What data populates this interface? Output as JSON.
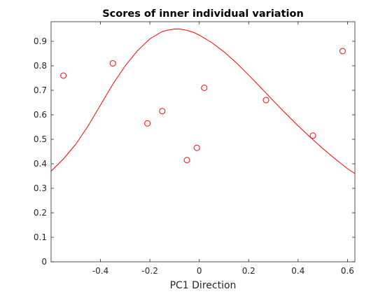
{
  "chart_data": {
    "type": "scatter",
    "title": "Scores of inner individual variation",
    "xlabel": "PC1 Direction",
    "ylabel": "",
    "xlim": [
      -0.6,
      0.63
    ],
    "ylim": [
      0,
      0.98
    ],
    "xticks": [
      -0.4,
      -0.2,
      0,
      0.2,
      0.4,
      0.6
    ],
    "xtick_labels": [
      "-0.4",
      "-0.2",
      "0",
      "0.2",
      "0.4",
      "0.6"
    ],
    "yticks": [
      0,
      0.1,
      0.2,
      0.3,
      0.4,
      0.5,
      0.6,
      0.7,
      0.8,
      0.9
    ],
    "ytick_labels": [
      "0",
      "0.1",
      "0.2",
      "0.3",
      "0.4",
      "0.5",
      "0.6",
      "0.7",
      "0.8",
      "0.9"
    ],
    "grid": false,
    "color": "#ff0000",
    "series": [
      {
        "kind": "points",
        "marker": "circle-open",
        "x": [
          -0.55,
          -0.35,
          -0.21,
          -0.15,
          -0.05,
          -0.01,
          0.02,
          0.27,
          0.46,
          0.58
        ],
        "y": [
          0.76,
          0.81,
          0.565,
          0.615,
          0.415,
          0.465,
          0.71,
          0.66,
          0.515,
          0.86
        ]
      },
      {
        "kind": "curve",
        "x": [
          -0.6,
          -0.55,
          -0.5,
          -0.45,
          -0.4,
          -0.35,
          -0.3,
          -0.25,
          -0.2,
          -0.15,
          -0.12,
          -0.1,
          -0.08,
          -0.05,
          -0.02,
          0,
          0.05,
          0.1,
          0.15,
          0.2,
          0.25,
          0.3,
          0.35,
          0.4,
          0.45,
          0.5,
          0.55,
          0.6,
          0.63
        ],
        "y": [
          0.37,
          0.42,
          0.48,
          0.555,
          0.64,
          0.725,
          0.8,
          0.862,
          0.91,
          0.94,
          0.947,
          0.95,
          0.95,
          0.945,
          0.935,
          0.925,
          0.895,
          0.857,
          0.812,
          0.762,
          0.71,
          0.657,
          0.605,
          0.555,
          0.508,
          0.462,
          0.42,
          0.38,
          0.36
        ]
      }
    ]
  }
}
